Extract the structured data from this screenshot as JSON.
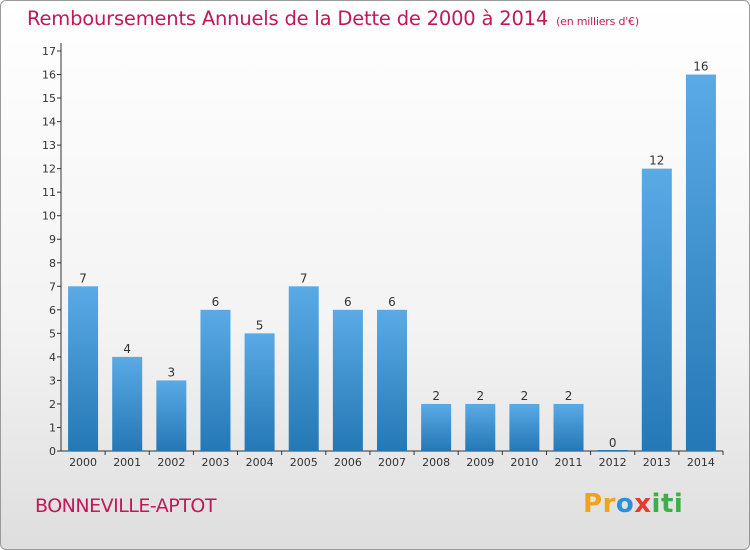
{
  "page": {
    "title": "Remboursements Annuels de la Dette de 2000 à 2014",
    "unit_note": "(en milliers d'€)",
    "town": "BONNEVILLE-APTOT",
    "logo": {
      "text": "Proxiti",
      "letters": [
        "P",
        "r",
        "o",
        "x",
        "i",
        "t",
        "i"
      ],
      "colors": [
        "#f2a31b",
        "#f2a31b",
        "#2f8fd8",
        "#e63b2e",
        "#3fae49",
        "#3fae49",
        "#3fae49"
      ]
    }
  },
  "colors": {
    "bar_light": "#5aaae6",
    "bar_dark": "#2478b5",
    "title": "#c2185b",
    "grid": "#d0d0d0"
  },
  "chart_data": {
    "type": "bar",
    "categories": [
      "2000",
      "2001",
      "2002",
      "2003",
      "2004",
      "2005",
      "2006",
      "2007",
      "2008",
      "2009",
      "2010",
      "2011",
      "2012",
      "2013",
      "2014"
    ],
    "values": [
      7,
      4,
      3,
      6,
      5,
      7,
      6,
      6,
      2,
      2,
      2,
      2,
      0,
      12,
      16
    ],
    "title": "Remboursements Annuels de la Dette de 2000 à 2014",
    "xlabel": "",
    "ylabel": "",
    "ylim": [
      0,
      17
    ],
    "yticks": [
      0,
      1,
      2,
      3,
      4,
      5,
      6,
      7,
      8,
      9,
      10,
      11,
      12,
      13,
      14,
      15,
      16,
      17
    ],
    "grid": false,
    "legend": "none"
  }
}
